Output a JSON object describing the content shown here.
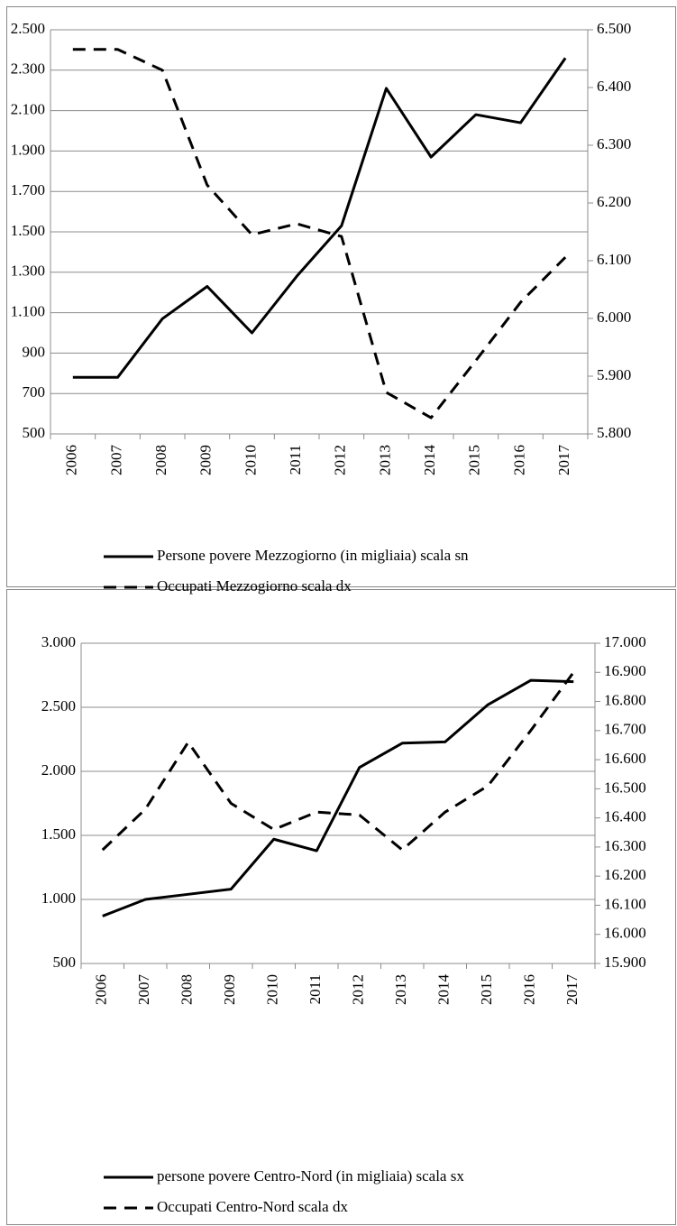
{
  "chart_data": [
    {
      "type": "line",
      "categories": [
        "2006",
        "2007",
        "2008",
        "2009",
        "2010",
        "2011",
        "2012",
        "2013",
        "2014",
        "2015",
        "2016",
        "2017"
      ],
      "series": [
        {
          "name": "Persone povere Mezzogiorno (in migliaia) scala sn",
          "color": "#000000",
          "style": "solid",
          "values": [
            780,
            780,
            1070,
            1230,
            1000,
            1280,
            1530,
            2210,
            1870,
            2080,
            2040,
            2360
          ]
        },
        {
          "name": "Occupati Mezzogiorno scala dx",
          "color": "#000000",
          "style": "dashed",
          "axis": "y2",
          "values": [
            6466,
            6466,
            6430,
            6231,
            6145,
            6164,
            6142,
            5872,
            5828,
            5927,
            6028,
            6106
          ]
        }
      ],
      "ylim": [
        500,
        2500
      ],
      "yticks": [
        {
          "value": 500,
          "label": "500"
        },
        {
          "value": 700,
          "label": "700"
        },
        {
          "value": 900,
          "label": "900"
        },
        {
          "value": 1100,
          "label": "1.100"
        },
        {
          "value": 1300,
          "label": "1.300"
        },
        {
          "value": 1500,
          "label": "1.500"
        },
        {
          "value": 1700,
          "label": "1.700"
        },
        {
          "value": 1900,
          "label": "1.900"
        },
        {
          "value": 2100,
          "label": "2.100"
        },
        {
          "value": 2300,
          "label": "2.300"
        },
        {
          "value": 2500,
          "label": "2.500"
        }
      ],
      "y2lim": [
        5800,
        6500
      ],
      "y2ticks": [
        {
          "value": 5800,
          "label": "5.800"
        },
        {
          "value": 5900,
          "label": "5.900"
        },
        {
          "value": 6000,
          "label": "6.000"
        },
        {
          "value": 6100,
          "label": "6.100"
        },
        {
          "value": 6200,
          "label": "6.200"
        },
        {
          "value": 6300,
          "label": "6.300"
        },
        {
          "value": 6400,
          "label": "6.400"
        },
        {
          "value": 6500,
          "label": "6.500"
        }
      ],
      "grid": true
    },
    {
      "type": "line",
      "categories": [
        "2006",
        "2007",
        "2008",
        "2009",
        "2010",
        "2011",
        "2012",
        "2013",
        "2014",
        "2015",
        "2016",
        "2017"
      ],
      "series": [
        {
          "name": "persone povere Centro-Nord (in migliaia) scala sx",
          "color": "#000000",
          "style": "solid",
          "values": [
            870,
            1000,
            1040,
            1080,
            1470,
            1380,
            2030,
            2220,
            2230,
            2520,
            2710,
            2700
          ]
        },
        {
          "name": "Occupati Centro-Nord scala dx",
          "color": "#000000",
          "style": "dashed",
          "axis": "y2",
          "values": [
            16290,
            16430,
            16660,
            16450,
            16360,
            16420,
            16410,
            16290,
            16420,
            16510,
            16700,
            16900
          ]
        }
      ],
      "ylim": [
        500,
        3000
      ],
      "yticks": [
        {
          "value": 500,
          "label": "500"
        },
        {
          "value": 1000,
          "label": "1.000"
        },
        {
          "value": 1500,
          "label": "1.500"
        },
        {
          "value": 2000,
          "label": "2.000"
        },
        {
          "value": 2500,
          "label": "2.500"
        },
        {
          "value": 3000,
          "label": "3.000"
        }
      ],
      "y2lim": [
        15900,
        17000
      ],
      "y2ticks": [
        {
          "value": 15900,
          "label": "15.900"
        },
        {
          "value": 16000,
          "label": "16.000"
        },
        {
          "value": 16100,
          "label": "16.100"
        },
        {
          "value": 16200,
          "label": "16.200"
        },
        {
          "value": 16300,
          "label": "16.300"
        },
        {
          "value": 16400,
          "label": "16.400"
        },
        {
          "value": 16500,
          "label": "16.500"
        },
        {
          "value": 16600,
          "label": "16.600"
        },
        {
          "value": 16700,
          "label": "16.700"
        },
        {
          "value": 16800,
          "label": "16.800"
        },
        {
          "value": 16900,
          "label": "16.900"
        },
        {
          "value": 17000,
          "label": "17.000"
        }
      ],
      "grid": true
    }
  ]
}
